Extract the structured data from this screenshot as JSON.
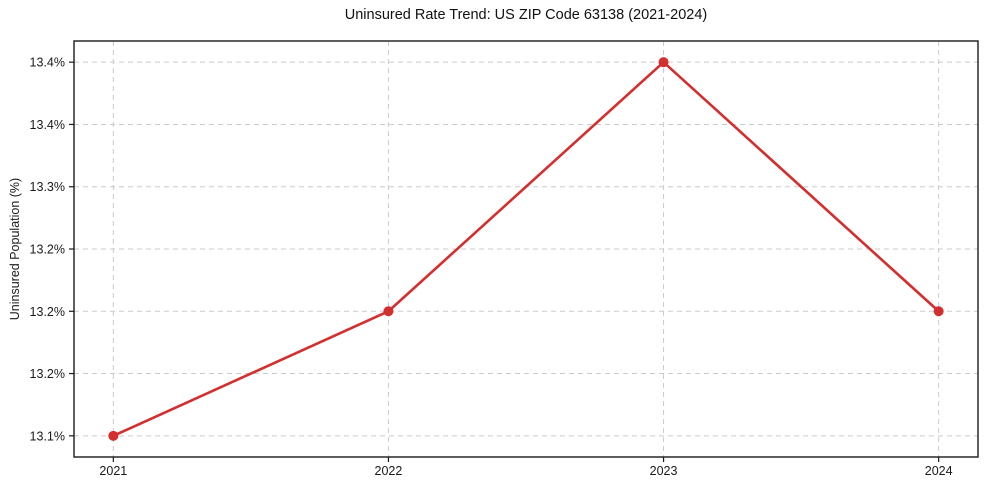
{
  "figure": {
    "background": "#ffffff"
  },
  "chart_data": {
    "type": "line",
    "title": "Uninsured Rate Trend: US ZIP Code 63138 (2021-2024)",
    "xlabel": "",
    "ylabel": "Uninsured Population (%)",
    "x": [
      2021,
      2022,
      2023,
      2024
    ],
    "values": [
      13.1,
      13.2,
      13.4,
      13.2
    ],
    "x_ticks": [
      {
        "value": 2021,
        "label": "2021"
      },
      {
        "value": 2022,
        "label": "2022"
      },
      {
        "value": 2023,
        "label": "2023"
      },
      {
        "value": 2024,
        "label": "2024"
      }
    ],
    "y_ticks": [
      {
        "value": 13.1,
        "label": "13.1%"
      },
      {
        "value": 13.15,
        "label": "13.2%"
      },
      {
        "value": 13.2,
        "label": "13.2%"
      },
      {
        "value": 13.25,
        "label": "13.2%"
      },
      {
        "value": 13.3,
        "label": "13.3%"
      },
      {
        "value": 13.35,
        "label": "13.4%"
      },
      {
        "value": 13.4,
        "label": "13.4%"
      }
    ],
    "xlim": [
      2020.857,
      2024.143
    ],
    "ylim": [
      13.083,
      13.417
    ],
    "grid": true,
    "grid_style": "dashed",
    "legend": false,
    "line_color": "#d32f2f",
    "marker_color": "#d32f2f",
    "grid_color": "#cbcbcb",
    "spine_color": "#1a1a1a",
    "text_color": "#1a1a1a",
    "line_width": 2.6,
    "marker_size": 5
  }
}
